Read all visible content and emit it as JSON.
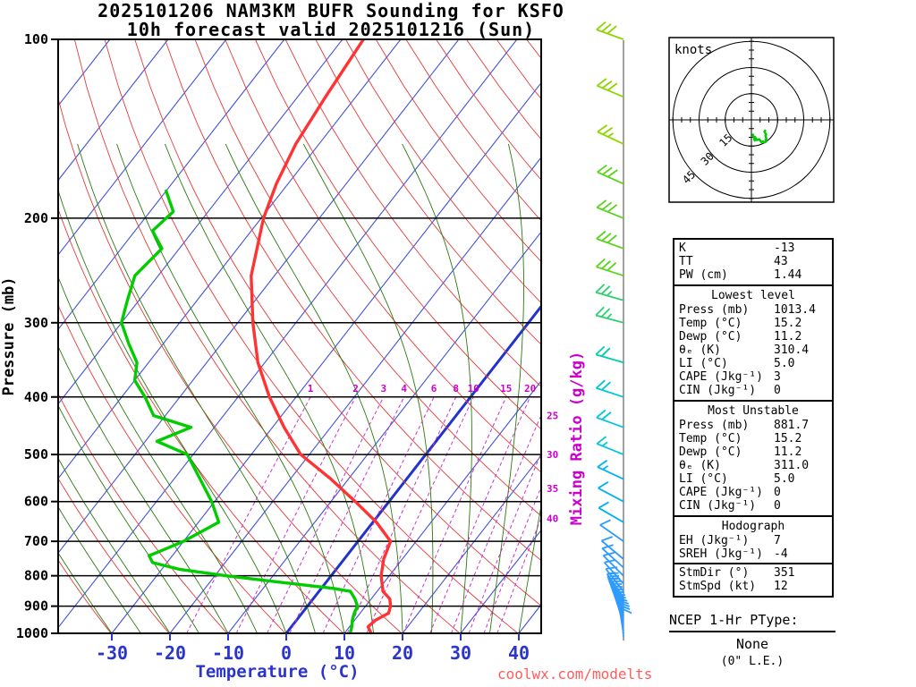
{
  "title": {
    "line1": "2025101206 NAM3KM BUFR Sounding for KSFO",
    "line2": "10h forecast valid 2025101216 (Sun)"
  },
  "chart_data": {
    "type": "line",
    "subtype": "skew-t-log-p-sounding",
    "title": "2025101206 NAM3KM BUFR Sounding for KSFO / 10h forecast valid 2025101216 (Sun)",
    "xlabel": "Temperature (°C)",
    "ylabel": "Pressure (mb)",
    "right_axis_label": "Mixing Ratio (g/kg)",
    "pressure_ticks_mb": [
      100,
      200,
      300,
      400,
      500,
      600,
      700,
      800,
      900,
      1000
    ],
    "temperature_ticks_c": [
      -30,
      -20,
      -10,
      0,
      10,
      20,
      30,
      40
    ],
    "pressure_range_mb": [
      100,
      1000
    ],
    "temperature_axis_range_c": [
      -40,
      45
    ],
    "mixing_ratio_labels_gkg": [
      1,
      2,
      3,
      4,
      6,
      8,
      10,
      15,
      20,
      25,
      30,
      35,
      40
    ],
    "series": [
      {
        "name": "Temperature",
        "color": "#ff3333",
        "pressure_mb": [
          1013,
          1000,
          975,
          950,
          925,
          900,
          875,
          850,
          800,
          750,
          700,
          650,
          600,
          550,
          500,
          450,
          400,
          350,
          300,
          250,
          200,
          175,
          150,
          125,
          100
        ],
        "values_c": [
          15.2,
          14.6,
          13.2,
          13.6,
          14.9,
          14.3,
          13.2,
          11.0,
          8.6,
          6.8,
          5.6,
          0.6,
          -5.8,
          -13.0,
          -21.5,
          -28.0,
          -34.6,
          -41.2,
          -47.4,
          -54.0,
          -59.6,
          -62.0,
          -64.0,
          -65.2,
          -66.4
        ]
      },
      {
        "name": "Dewpoint",
        "color": "#00cc00",
        "pressure_mb": [
          1013,
          1000,
          975,
          950,
          925,
          900,
          875,
          850,
          840,
          820,
          800,
          780,
          760,
          740,
          720,
          700,
          650,
          600,
          550,
          500,
          475,
          450,
          430,
          400,
          375,
          350,
          325,
          300,
          275,
          250,
          225,
          210,
          195,
          180
        ],
        "values_c": [
          11.2,
          11.0,
          10.4,
          9.6,
          9.0,
          8.6,
          7.2,
          5.4,
          2.0,
          -8.0,
          -18.0,
          -27.0,
          -32.5,
          -34.0,
          -32.0,
          -30.0,
          -26.5,
          -30.5,
          -35.5,
          -41.0,
          -48.0,
          -44.0,
          -52.0,
          -56.0,
          -60.0,
          -62.0,
          -66.0,
          -70.0,
          -72.0,
          -74.0,
          -73.0,
          -77.0,
          -76.0,
          -80.0
        ]
      }
    ],
    "wind_profile": {
      "pressure_mb": [
        1013,
        1000,
        990,
        980,
        970,
        960,
        950,
        940,
        930,
        920,
        910,
        900,
        890,
        880,
        870,
        850,
        825,
        800,
        775,
        750,
        700,
        650,
        600,
        550,
        500,
        450,
        400,
        350,
        300,
        275,
        250,
        225,
        200,
        175,
        150,
        125,
        100
      ],
      "dir_deg": [
        355,
        351,
        350,
        348,
        345,
        342,
        340,
        338,
        336,
        334,
        332,
        330,
        328,
        326,
        325,
        322,
        318,
        315,
        312,
        310,
        305,
        300,
        298,
        295,
        292,
        290,
        288,
        286,
        285,
        286,
        288,
        290,
        292,
        294,
        295,
        293,
        290
      ],
      "speed_kt": [
        8,
        12,
        10,
        10,
        12,
        12,
        12,
        12,
        14,
        14,
        14,
        15,
        15,
        15,
        14,
        14,
        12,
        12,
        10,
        10,
        10,
        12,
        12,
        14,
        15,
        18,
        20,
        22,
        25,
        25,
        28,
        28,
        30,
        28,
        26,
        28,
        30
      ]
    }
  },
  "hodograph": {
    "unit_label": "knots",
    "ring_radii_kt": [
      15,
      30,
      45
    ]
  },
  "stats_panel": {
    "groups": [
      {
        "header": null,
        "rows": [
          [
            "K",
            "-13"
          ],
          [
            "TT",
            "43"
          ],
          [
            "PW (cm)",
            "1.44"
          ]
        ]
      },
      {
        "header": "Lowest level",
        "rows": [
          [
            "Press (mb)",
            "1013.4"
          ],
          [
            "Temp (°C)",
            "15.2"
          ],
          [
            "Dewp (°C)",
            "11.2"
          ],
          [
            "θₑ (K)",
            "310.4"
          ],
          [
            "LI (°C)",
            "5.0"
          ],
          [
            "CAPE (Jkg⁻¹)",
            "3"
          ],
          [
            "CIN (Jkg⁻¹)",
            "0"
          ]
        ]
      },
      {
        "header": "Most Unstable",
        "rows": [
          [
            "Press (mb)",
            "881.7"
          ],
          [
            "Temp (°C)",
            "15.2"
          ],
          [
            "Dewp (°C)",
            "11.2"
          ],
          [
            "θₑ (K)",
            "311.0"
          ],
          [
            "LI (°C)",
            "5.0"
          ],
          [
            "CAPE (Jkg⁻¹)",
            "0"
          ],
          [
            "CIN (Jkg⁻¹)",
            "0"
          ]
        ]
      },
      {
        "header": "Hodograph",
        "rows": [
          [
            "EH (Jkg⁻¹)",
            "7"
          ],
          [
            "SREH (Jkg⁻¹)",
            "-4"
          ]
        ],
        "rows2": [
          [
            "StmDir (°)",
            "351"
          ],
          [
            "StmSpd (kt)",
            "12"
          ]
        ]
      }
    ]
  },
  "ptype_panel": {
    "header": "NCEP 1-Hr PType:",
    "value": "None",
    "detail": "(0\" L.E.)"
  },
  "watermark": "coolwx.com/modelts"
}
